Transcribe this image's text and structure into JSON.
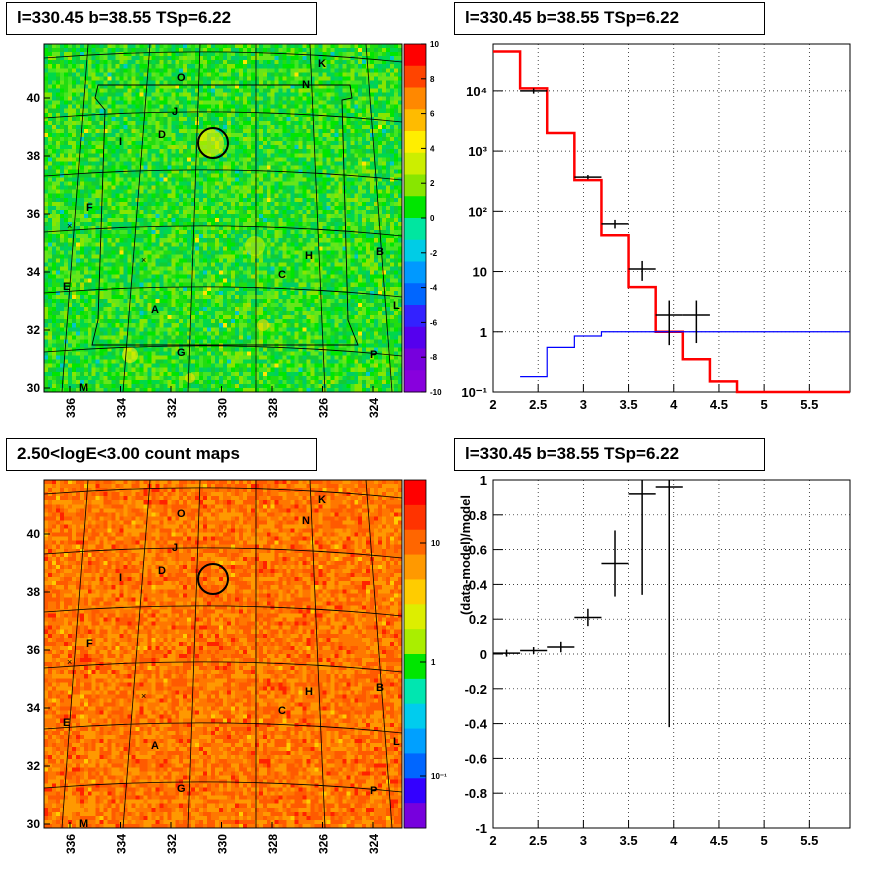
{
  "panels": {
    "tl_title": "l=330.45 b=38.55 TSp=6.22",
    "tr_title": "l=330.45 b=38.55 TSp=6.22",
    "bl_title": "2.50<logE<3.00 count maps",
    "br_title": "l=330.45 b=38.55 TSp=6.22"
  },
  "maps": {
    "x_ticks": [
      "336",
      "334",
      "332",
      "330",
      "328",
      "326",
      "324"
    ],
    "y_ticks": [
      "30",
      "32",
      "34",
      "36",
      "38",
      "40"
    ],
    "letters": [
      "O",
      "K",
      "N",
      "J",
      "D",
      "I",
      "F",
      "H",
      "B",
      "C",
      "E",
      "A",
      "L",
      "G",
      "P",
      "M"
    ],
    "tl_colorbar_ticks": [
      "10",
      "8",
      "6",
      "4",
      "2",
      "0",
      "-2",
      "-4",
      "-6",
      "-8",
      "-10"
    ],
    "bl_colorbar_ticks": [
      "10",
      "1",
      "10⁻¹"
    ]
  },
  "chart_data": [
    {
      "type": "line",
      "panel": "spectrum",
      "title": "l=330.45 b=38.55 TSp=6.22",
      "x_ticks": [
        "2",
        "2.5",
        "3",
        "3.5",
        "4",
        "4.5",
        "5",
        "5.5"
      ],
      "y_ticks": [
        "10⁻¹",
        "1",
        "10",
        "10²",
        "10³",
        "10⁴"
      ],
      "xlim": [
        2,
        5.95
      ],
      "ylim": [
        0.1,
        60000
      ],
      "log_y": true,
      "grid": true,
      "series": [
        {
          "color": "#ff0000",
          "steps": [
            [
              2.0,
              2.3,
              45000
            ],
            [
              2.3,
              2.6,
              11000
            ],
            [
              2.6,
              2.9,
              2000
            ],
            [
              2.9,
              3.2,
              330
            ],
            [
              3.2,
              3.5,
              40
            ],
            [
              3.5,
              3.8,
              5.5
            ],
            [
              3.8,
              4.1,
              1.0
            ],
            [
              4.1,
              4.4,
              0.35
            ],
            [
              4.4,
              4.7,
              0.15
            ],
            [
              4.7,
              5.95,
              0.1
            ]
          ]
        },
        {
          "color": "#0000ff",
          "steps": [
            [
              2.3,
              2.6,
              0.18
            ],
            [
              2.6,
              2.9,
              0.55
            ],
            [
              2.9,
              3.2,
              0.85
            ],
            [
              3.2,
              3.5,
              1.0
            ],
            [
              3.5,
              5.95,
              1.0
            ]
          ]
        },
        {
          "color": "#000000",
          "points": [
            [
              2.45,
              10000,
              11000,
              9000
            ],
            [
              3.05,
              370,
              400,
              340
            ],
            [
              3.35,
              62,
              72,
              52
            ],
            [
              3.65,
              11,
              15,
              7
            ],
            [
              3.95,
              1.9,
              3.3,
              0.6
            ],
            [
              4.25,
              1.9,
              3.3,
              0.65
            ]
          ]
        }
      ]
    },
    {
      "type": "scatter",
      "panel": "residuals",
      "title": "l=330.45 b=38.55 TSp=6.22",
      "ylabel": "(data-model)/model",
      "x_ticks": [
        "2",
        "2.5",
        "3",
        "3.5",
        "4",
        "4.5",
        "5",
        "5.5"
      ],
      "y_ticks": [
        "1",
        "0.8",
        "0.6",
        "0.4",
        "0.2",
        "0",
        "-0.2",
        "-0.4",
        "-0.6",
        "-0.8",
        "-1"
      ],
      "xlim": [
        2,
        5.95
      ],
      "ylim": [
        -1,
        1
      ],
      "grid": true,
      "series": [
        {
          "color": "#000000",
          "points": [
            [
              2.15,
              0.005,
              0.02
            ],
            [
              2.45,
              0.02,
              0.02
            ],
            [
              2.75,
              0.04,
              0.03
            ],
            [
              3.05,
              0.21,
              0.05
            ],
            [
              3.35,
              0.52,
              0.19
            ],
            [
              3.65,
              0.92,
              0.58
            ],
            [
              3.95,
              0.96,
              1.38
            ]
          ]
        }
      ]
    }
  ]
}
